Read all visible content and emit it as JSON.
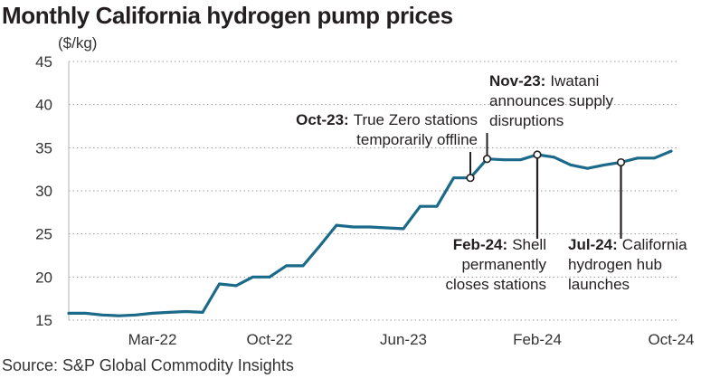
{
  "title": "Monthly California hydrogen pump prices",
  "source": "Source: S&P Global Commodity Insights",
  "chart_data": {
    "type": "line",
    "title": "Monthly California hydrogen pump prices",
    "ylabel": "($/kg)",
    "xlabel": "",
    "ylim": [
      15,
      45
    ],
    "yticks": [
      15,
      20,
      25,
      30,
      35,
      40,
      45
    ],
    "grid": "horizontal",
    "line_color": "#1b6a8a",
    "x_tick_labels": [
      "Mar-22",
      "Oct-22",
      "Jun-23",
      "Feb-24",
      "Oct-24"
    ],
    "x": [
      "Oct-21",
      "Nov-21",
      "Dec-21",
      "Jan-22",
      "Feb-22",
      "Mar-22",
      "Apr-22",
      "May-22",
      "Jun-22",
      "Jul-22",
      "Aug-22",
      "Sep-22",
      "Oct-22",
      "Nov-22",
      "Dec-22",
      "Jan-23",
      "Feb-23",
      "Mar-23",
      "Apr-23",
      "May-23",
      "Jun-23",
      "Jul-23",
      "Aug-23",
      "Sep-23",
      "Oct-23",
      "Nov-23",
      "Dec-23",
      "Jan-24",
      "Feb-24",
      "Mar-24",
      "Apr-24",
      "May-24",
      "Jun-24",
      "Jul-24",
      "Aug-24",
      "Sep-24",
      "Oct-24"
    ],
    "values": [
      15.8,
      15.8,
      15.6,
      15.5,
      15.6,
      15.8,
      15.9,
      16.0,
      15.9,
      19.2,
      19.0,
      20.0,
      20.0,
      21.3,
      21.3,
      23.6,
      26.0,
      25.8,
      25.8,
      25.7,
      25.6,
      28.2,
      28.2,
      31.5,
      31.5,
      33.7,
      33.6,
      33.6,
      34.2,
      33.9,
      33.0,
      32.6,
      33.0,
      33.3,
      33.8,
      33.8,
      34.6
    ],
    "annotations": [
      {
        "x": "Oct-23",
        "bold": "Oct-23:",
        "lines": [
          "True Zero stations",
          "temporarily offline"
        ]
      },
      {
        "x": "Nov-23",
        "bold": "Nov-23:",
        "lines": [
          "Iwatani",
          "announces supply",
          "disruptions"
        ]
      },
      {
        "x": "Feb-24",
        "bold": "Feb-24:",
        "lines": [
          "Shell",
          "permanently",
          "closes stations"
        ]
      },
      {
        "x": "Jul-24",
        "bold": "Jul-24:",
        "lines": [
          "California",
          "hydrogen hub",
          "launches"
        ]
      }
    ]
  }
}
